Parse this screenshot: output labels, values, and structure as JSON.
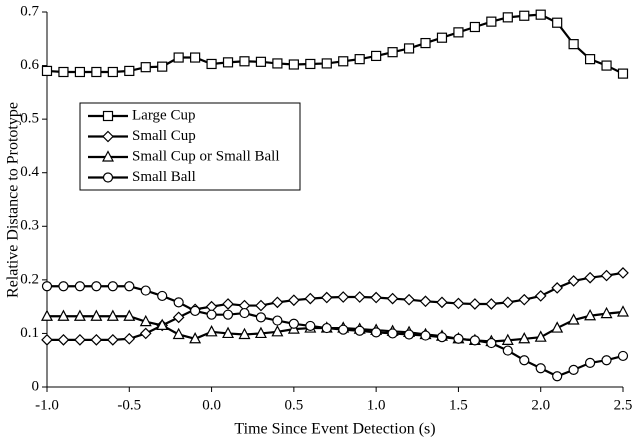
{
  "chart_data": {
    "type": "line",
    "x_label": "Time Since Event Detection (s)",
    "y_label": "Relative Distance to Prototype",
    "x": [
      -1.0,
      -0.9,
      -0.8,
      -0.7,
      -0.6,
      -0.5,
      -0.4,
      -0.3,
      -0.2,
      -0.1,
      0.0,
      0.1,
      0.2,
      0.3,
      0.4,
      0.5,
      0.6,
      0.7,
      0.8,
      0.9,
      1.0,
      1.1,
      1.2,
      1.3,
      1.4,
      1.5,
      1.6,
      1.7,
      1.8,
      1.9,
      2.0,
      2.1,
      2.2,
      2.3,
      2.4,
      2.5
    ],
    "series": [
      {
        "name": "Large Cup",
        "color": "#000000",
        "marker": "square",
        "values": [
          0.59,
          0.588,
          0.588,
          0.588,
          0.588,
          0.59,
          0.597,
          0.598,
          0.615,
          0.615,
          0.603,
          0.606,
          0.608,
          0.607,
          0.604,
          0.602,
          0.603,
          0.604,
          0.608,
          0.612,
          0.618,
          0.625,
          0.632,
          0.642,
          0.652,
          0.662,
          0.672,
          0.682,
          0.69,
          0.693,
          0.695,
          0.68,
          0.64,
          0.612,
          0.6,
          0.585
        ]
      },
      {
        "name": "Small Cup",
        "color": "#000000",
        "marker": "diamond",
        "values": [
          0.088,
          0.088,
          0.088,
          0.088,
          0.088,
          0.09,
          0.1,
          0.115,
          0.13,
          0.145,
          0.15,
          0.155,
          0.152,
          0.152,
          0.158,
          0.162,
          0.165,
          0.167,
          0.168,
          0.168,
          0.167,
          0.165,
          0.163,
          0.16,
          0.158,
          0.156,
          0.155,
          0.155,
          0.158,
          0.163,
          0.17,
          0.185,
          0.198,
          0.204,
          0.208,
          0.213
        ]
      },
      {
        "name": "Small Cup or Small Ball",
        "color": "#000000",
        "marker": "triangle",
        "values": [
          0.132,
          0.132,
          0.132,
          0.132,
          0.132,
          0.132,
          0.122,
          0.115,
          0.098,
          0.09,
          0.103,
          0.1,
          0.098,
          0.1,
          0.103,
          0.108,
          0.11,
          0.11,
          0.11,
          0.108,
          0.106,
          0.104,
          0.102,
          0.098,
          0.095,
          0.09,
          0.087,
          0.085,
          0.087,
          0.09,
          0.093,
          0.11,
          0.125,
          0.133,
          0.137,
          0.14
        ]
      },
      {
        "name": "Small Ball",
        "color": "#000000",
        "marker": "circle",
        "values": [
          0.188,
          0.188,
          0.188,
          0.188,
          0.188,
          0.188,
          0.18,
          0.17,
          0.158,
          0.142,
          0.135,
          0.135,
          0.138,
          0.13,
          0.124,
          0.118,
          0.114,
          0.11,
          0.107,
          0.105,
          0.102,
          0.1,
          0.098,
          0.096,
          0.093,
          0.09,
          0.087,
          0.082,
          0.068,
          0.05,
          0.035,
          0.02,
          0.032,
          0.045,
          0.05,
          0.058
        ]
      }
    ],
    "xlim": [
      -1.0,
      2.5
    ],
    "xticks": [
      {
        "value": -1.0,
        "label": "-1.0"
      },
      {
        "value": -0.5,
        "label": "-0.5"
      },
      {
        "value": 0.0,
        "label": "0.0"
      },
      0.5,
      {
        "value": 1.0,
        "label": "1.0"
      },
      1.5,
      {
        "value": 2.0,
        "label": "2.0"
      },
      2.5
    ],
    "ylim": [
      0,
      0.7
    ],
    "yticks": [
      0,
      0.1,
      0.2,
      0.3,
      0.4,
      0.5,
      0.6,
      0.7
    ],
    "grid": false,
    "legend_position": "center left"
  }
}
